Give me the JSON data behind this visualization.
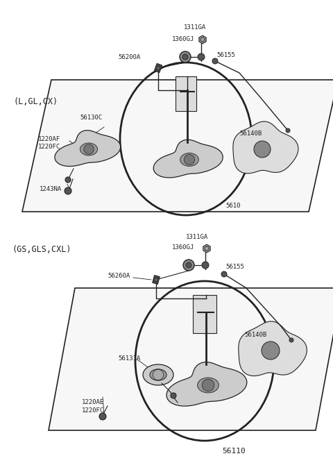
{
  "bg_color": "#ffffff",
  "line_color": "#222222",
  "text_color": "#222222",
  "fig_width": 4.8,
  "fig_height": 6.57,
  "dpi": 100,
  "title": "56110",
  "top_variant": "(L,GL,CX)",
  "bottom_variant": "(GS,GLS,CXL)",
  "font": "DejaVu Sans",
  "fs_label": 7.5,
  "fs_part": 6.5,
  "fs_title": 8
}
